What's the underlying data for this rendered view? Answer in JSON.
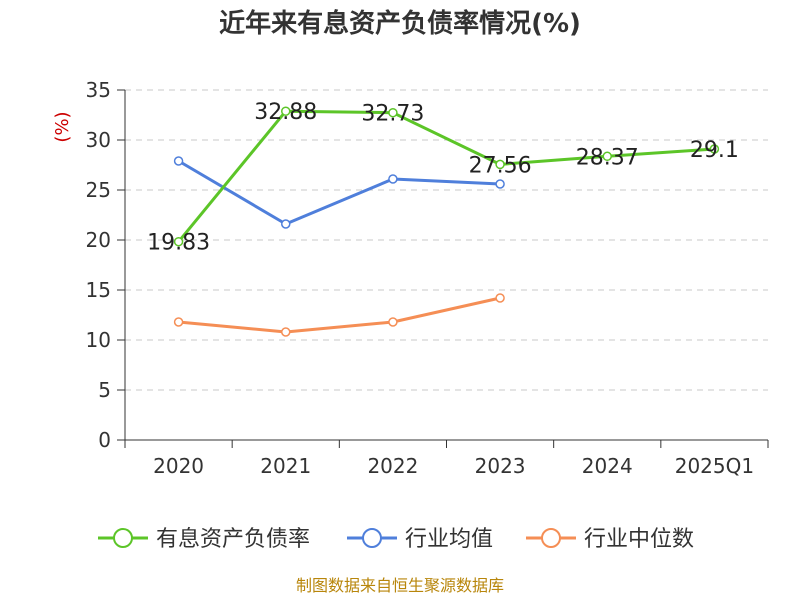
{
  "chart_data": {
    "type": "line",
    "title": "近年来有息资产负债率情况(%)",
    "ylabel": "(%)",
    "xlabel": "",
    "categories": [
      "2020",
      "2021",
      "2022",
      "2023",
      "2024",
      "2025Q1"
    ],
    "ylim": [
      0,
      35
    ],
    "yticks": [
      "0",
      "5",
      "10",
      "15",
      "20",
      "25",
      "30",
      "35"
    ],
    "grid": true,
    "legend_placement": "bottom",
    "series": [
      {
        "name": "有息资产负债率",
        "color": "#5cc528",
        "values": [
          19.83,
          32.88,
          32.73,
          27.56,
          28.37,
          29.1
        ],
        "labels": [
          "19.83",
          "32.88",
          "32.73",
          "27.56",
          "28.37",
          "29.1"
        ]
      },
      {
        "name": "行业均值",
        "color": "#4f7fdb",
        "values": [
          27.9,
          21.6,
          26.1,
          25.6,
          null,
          null
        ]
      },
      {
        "name": "行业中位数",
        "color": "#f58e55",
        "values": [
          11.8,
          10.8,
          11.8,
          14.2,
          null,
          null
        ]
      }
    ]
  },
  "source": "制图数据来自恒生聚源数据库"
}
